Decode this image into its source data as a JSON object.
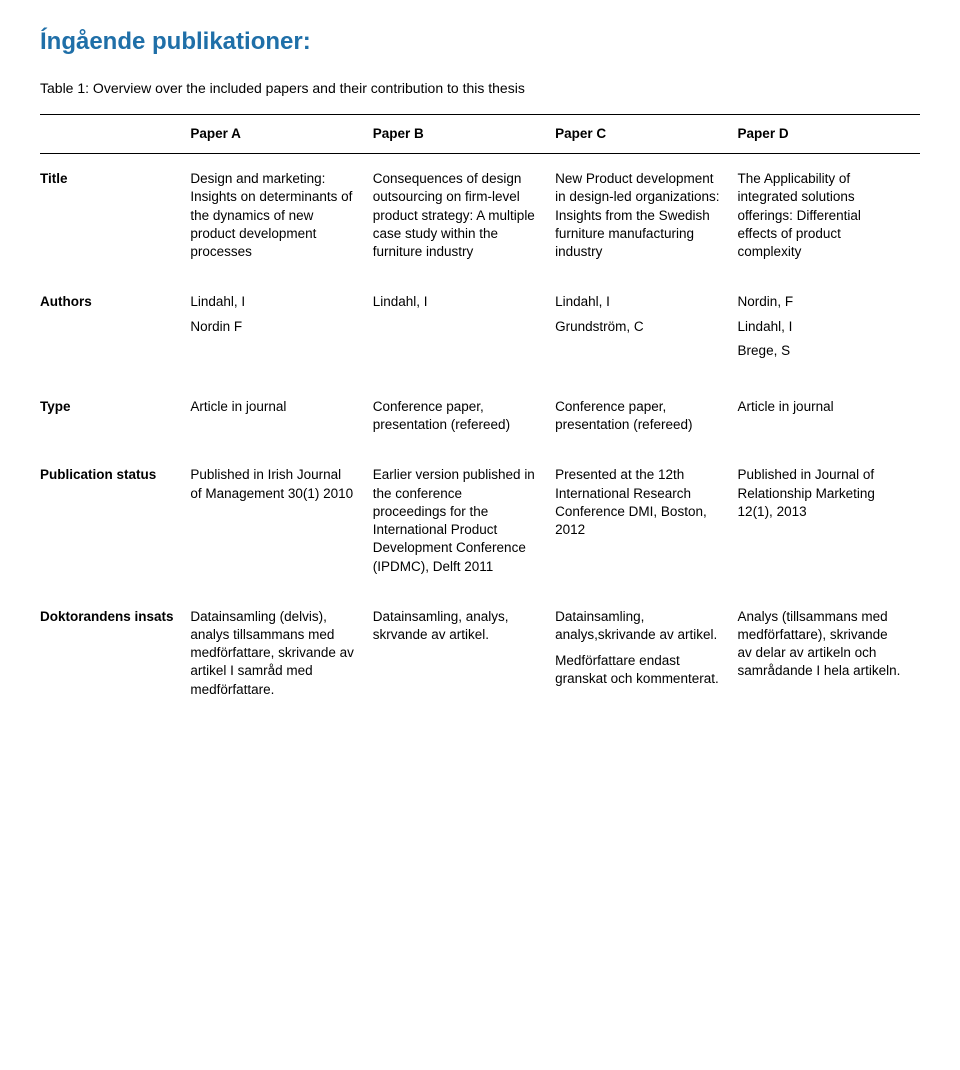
{
  "heading": "Íngående publikationer:",
  "caption": "Table 1: Overview over the included papers and their contribution to this thesis",
  "columns": [
    "",
    "Paper A",
    "Paper B",
    "Paper C",
    "Paper D"
  ],
  "rows": {
    "title": {
      "label": "Title",
      "a": "Design and marketing: Insights on determinants of the dynamics of new product development processes",
      "b": "Consequences of design outsourcing on firm-level product strategy: A multiple case study within the furniture industry",
      "c": "New Product development in design-led organizations: Insights from the Swedish furniture manufacturing industry",
      "d": "The Applicability of integrated solutions offerings: Differential effects of product complexity"
    },
    "authors": {
      "label": "Authors",
      "a1": "Lindahl, I",
      "a2": "Nordin F",
      "b1": "Lindahl, I",
      "c1": "Lindahl, I",
      "c2": "Grundström, C",
      "d1": "Nordin, F",
      "d2": "Lindahl, I",
      "d3": "Brege, S"
    },
    "type": {
      "label": "Type",
      "a": "Article in journal",
      "b": "Conference paper, presentation (refereed)",
      "c": "Conference paper, presentation (refereed)",
      "d": "Article in journal"
    },
    "pubstatus": {
      "label": "Publication status",
      "a": "Published in Irish Journal of Management 30(1) 2010",
      "b": "Earlier version published in the conference proceedings for the International Product Development Conference (IPDMC), Delft 2011",
      "c": "Presented at the 12th International Research Conference DMI, Boston, 2012",
      "d": "Published in Journal of Relationship Marketing 12(1), 2013"
    },
    "insats": {
      "label": "Doktorandens insats",
      "a": "Datainsamling (delvis), analys tillsammans med medförfattare, skrivande av artikel I samråd med medförfattare.",
      "b": "Datainsamling, analys, skrvande av artikel.",
      "c1": "Datainsamling, analys,skrivande av artikel.",
      "c2": "Medförfattare endast granskat och kommenterat.",
      "d": "Analys (tillsammans med medförfattare), skrivande av delar av artikeln och samrådande I hela artikeln."
    }
  }
}
